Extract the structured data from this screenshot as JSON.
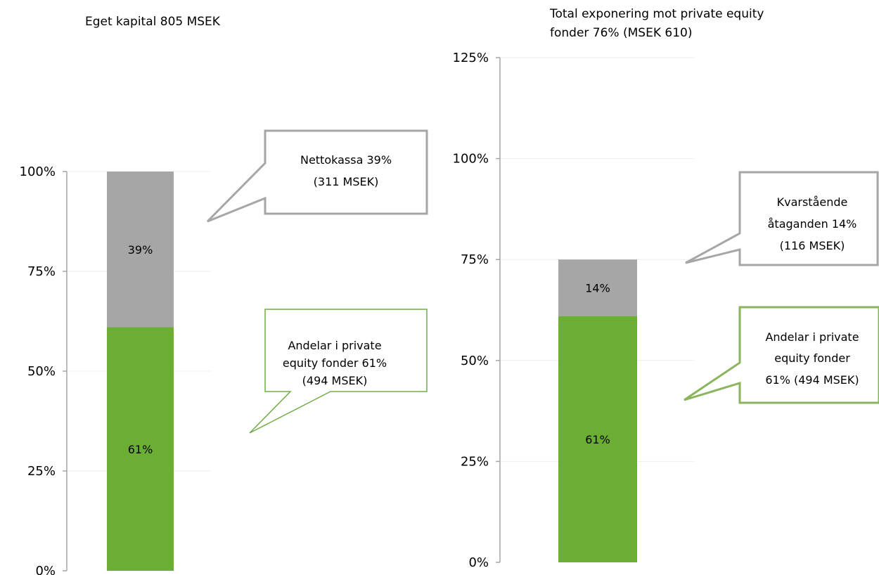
{
  "colors": {
    "green": "#6aaf33",
    "gray": "#a6a6a6",
    "axis": "#a6a6a6",
    "grid": "#ededed",
    "callout_gray_border": "#a6a6a6",
    "callout_green_border": "#70ad47"
  },
  "chart_data": [
    {
      "type": "bar",
      "stacked": true,
      "title": "Eget kapital 805 MSEK",
      "categories": [
        ""
      ],
      "ylim": [
        0,
        1.0
      ],
      "yticks": [
        "0%",
        "25%",
        "50%",
        "75%",
        "100%"
      ],
      "grid": true,
      "series": [
        {
          "key": "pe",
          "values": [
            0.61
          ],
          "data_label": "61%",
          "color": "#6aaf33"
        },
        {
          "key": "cash",
          "values": [
            0.39
          ],
          "data_label": "39%",
          "color": "#a6a6a6"
        }
      ],
      "callouts": [
        {
          "key": "cash",
          "lines": [
            "Nettokassa 39%",
            "(311 MSEK)"
          ],
          "style": "gray"
        },
        {
          "key": "pe",
          "lines": [
            "Andelar i private",
            "equity fonder 61%",
            "(494 MSEK)"
          ],
          "style": "green"
        }
      ]
    },
    {
      "type": "bar",
      "stacked": true,
      "title_lines": [
        "Total exponering mot private equity",
        "fonder 76% (MSEK 610)"
      ],
      "categories": [
        ""
      ],
      "ylim": [
        0,
        1.25
      ],
      "yticks": [
        "0%",
        "25%",
        "50%",
        "75%",
        "100%",
        "125%"
      ],
      "grid": true,
      "series": [
        {
          "key": "pe",
          "values": [
            0.61
          ],
          "data_label": "61%",
          "color": "#6aaf33"
        },
        {
          "key": "commit",
          "values": [
            0.14
          ],
          "data_label": "14%",
          "color": "#a6a6a6"
        }
      ],
      "callouts": [
        {
          "key": "commit",
          "lines": [
            "Kvarstående",
            "åtaganden 14%",
            "(116 MSEK)"
          ],
          "style": "gray"
        },
        {
          "key": "pe",
          "lines": [
            "Andelar i private",
            "equity fonder",
            "61% (494 MSEK)"
          ],
          "style": "green"
        }
      ]
    }
  ]
}
